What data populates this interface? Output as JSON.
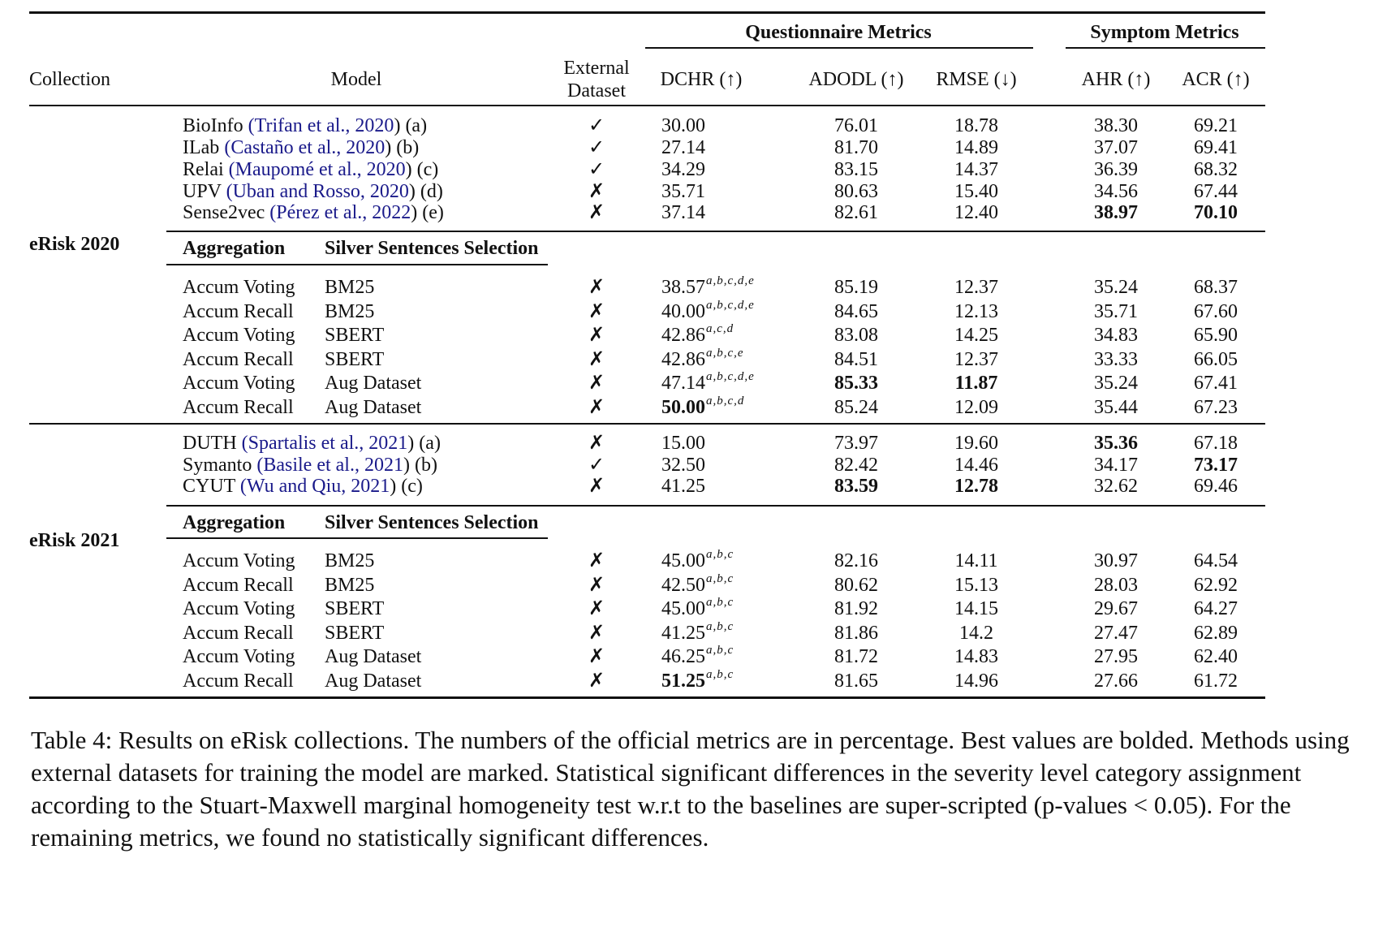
{
  "header": {
    "group_questionnaire": "Questionnaire Metrics",
    "group_symptom": "Symptom Metrics",
    "collection": "Collection",
    "model": "Model",
    "external_line1": "External",
    "external_line2": "Dataset",
    "dchr": "DCHR (↑)",
    "adodl": "ADODL (↑)",
    "rmse": "RMSE (↓)",
    "ahr": "AHR (↑)",
    "acr": "ACR (↑)"
  },
  "sections": [
    {
      "collection": "eRisk 2020",
      "baselines": [
        {
          "name": "BioInfo",
          "cite": "Trifan et al., 2020",
          "tag": "(a)",
          "ext": "✓",
          "dchr": "30.00",
          "adodl": "76.01",
          "rmse": "18.78",
          "ahr": "38.30",
          "acr": "69.21"
        },
        {
          "name": "ILab",
          "cite": "Castaño et al., 2020",
          "tag": "(b)",
          "ext": "✓",
          "dchr": "27.14",
          "adodl": "81.70",
          "rmse": "14.89",
          "ahr": "37.07",
          "acr": "69.41"
        },
        {
          "name": "Relai",
          "cite": "Maupomé et al., 2020",
          "tag": "(c)",
          "ext": "✓",
          "dchr": "34.29",
          "adodl": "83.15",
          "rmse": "14.37",
          "ahr": "36.39",
          "acr": "68.32"
        },
        {
          "name": "UPV",
          "cite": "Uban and Rosso, 2020",
          "tag": "(d)",
          "ext": "✗",
          "dchr": "35.71",
          "adodl": "80.63",
          "rmse": "15.40",
          "ahr": "34.56",
          "acr": "67.44"
        },
        {
          "name": "Sense2vec",
          "cite": "Pérez et al., 2022",
          "tag": "(e)",
          "ext": "✗",
          "dchr": "37.14",
          "adodl": "82.61",
          "rmse": "12.40",
          "ahr": "38.97",
          "acr": "70.10"
        }
      ],
      "sub_header": {
        "aggregation": "Aggregation",
        "selection": "Silver Sentences Selection"
      },
      "methods": [
        {
          "agg": "Accum Voting",
          "sel": "BM25",
          "ext": "✗",
          "dchr": "38.57",
          "sup": "a,b,c,d,e",
          "adodl": "85.19",
          "rmse": "12.37",
          "ahr": "35.24",
          "acr": "68.37"
        },
        {
          "agg": "Accum Recall",
          "sel": "BM25",
          "ext": "✗",
          "dchr": "40.00",
          "sup": "a,b,c,d,e",
          "adodl": "84.65",
          "rmse": "12.13",
          "ahr": "35.71",
          "acr": "67.60"
        },
        {
          "agg": "Accum Voting",
          "sel": "SBERT",
          "ext": "✗",
          "dchr": "42.86",
          "sup": "a,c,d",
          "adodl": "83.08",
          "rmse": "14.25",
          "ahr": "34.83",
          "acr": "65.90"
        },
        {
          "agg": "Accum Recall",
          "sel": "SBERT",
          "ext": "✗",
          "dchr": "42.86",
          "sup": "a,b,c,e",
          "adodl": "84.51",
          "rmse": "12.37",
          "ahr": "33.33",
          "acr": "66.05"
        },
        {
          "agg": "Accum Voting",
          "sel": "Aug Dataset",
          "ext": "✗",
          "dchr": "47.14",
          "sup": "a,b,c,d,e",
          "adodl": "85.33",
          "rmse": "11.87",
          "ahr": "35.24",
          "acr": "67.41"
        },
        {
          "agg": "Accum Recall",
          "sel": "Aug Dataset",
          "ext": "✗",
          "dchr": "50.00",
          "sup": "a,b,c,d",
          "adodl": "85.24",
          "rmse": "12.09",
          "ahr": "35.44",
          "acr": "67.23"
        }
      ]
    },
    {
      "collection": "eRisk 2021",
      "baselines": [
        {
          "name": "DUTH",
          "cite": "Spartalis et al., 2021",
          "tag": "(a)",
          "ext": "✗",
          "dchr": "15.00",
          "adodl": "73.97",
          "rmse": "19.60",
          "ahr": "35.36",
          "acr": "67.18"
        },
        {
          "name": "Symanto",
          "cite": "Basile et al., 2021",
          "tag": "(b)",
          "ext": "✓",
          "dchr": "32.50",
          "adodl": "82.42",
          "rmse": "14.46",
          "ahr": "34.17",
          "acr": "73.17"
        },
        {
          "name": "CYUT",
          "cite": "Wu and Qiu, 2021",
          "tag": "(c)",
          "ext": "✗",
          "dchr": "41.25",
          "adodl": "83.59",
          "rmse": "12.78",
          "ahr": "32.62",
          "acr": "69.46"
        }
      ],
      "sub_header": {
        "aggregation": "Aggregation",
        "selection": "Silver Sentences Selection"
      },
      "methods": [
        {
          "agg": "Accum Voting",
          "sel": "BM25",
          "ext": "✗",
          "dchr": "45.00",
          "sup": "a,b,c",
          "adodl": "82.16",
          "rmse": "14.11",
          "ahr": "30.97",
          "acr": "64.54"
        },
        {
          "agg": "Accum Recall",
          "sel": "BM25",
          "ext": "✗",
          "dchr": "42.50",
          "sup": "a,b,c",
          "adodl": "80.62",
          "rmse": "15.13",
          "ahr": "28.03",
          "acr": "62.92"
        },
        {
          "agg": "Accum Voting",
          "sel": "SBERT",
          "ext": "✗",
          "dchr": "45.00",
          "sup": "a,b,c",
          "adodl": "81.92",
          "rmse": "14.15",
          "ahr": "29.67",
          "acr": "64.27"
        },
        {
          "agg": "Accum Recall",
          "sel": "SBERT",
          "ext": "✗",
          "dchr": "41.25",
          "sup": "a,b,c",
          "adodl": "81.86",
          "rmse": "14.2",
          "ahr": "27.47",
          "acr": "62.89"
        },
        {
          "agg": "Accum Voting",
          "sel": "Aug Dataset",
          "ext": "✗",
          "dchr": "46.25",
          "sup": "a,b,c",
          "adodl": "81.72",
          "rmse": "14.83",
          "ahr": "27.95",
          "acr": "62.40"
        },
        {
          "agg": "Accum Recall",
          "sel": "Aug Dataset",
          "ext": "✗",
          "dchr": "51.25",
          "sup": "a,b,c",
          "adodl": "81.65",
          "rmse": "14.96",
          "ahr": "27.66",
          "acr": "61.72"
        }
      ]
    }
  ],
  "bold_values": [
    "38.97",
    "70.10",
    "85.33",
    "11.87",
    "50.00",
    "35.36",
    "73.17",
    "83.59",
    "12.78",
    "51.25"
  ],
  "caption": "Table 4: Results on eRisk collections. The numbers of the official metrics are in percentage. Best values are bolded. Methods using external datasets for training the model are marked. Statistical significant differences in the severity level category assignment according to the Stuart-Maxwell marginal homogeneity test w.r.t to the baselines are super-scripted (p-values < 0.05). For the remaining metrics, we found no statistically significant differences."
}
